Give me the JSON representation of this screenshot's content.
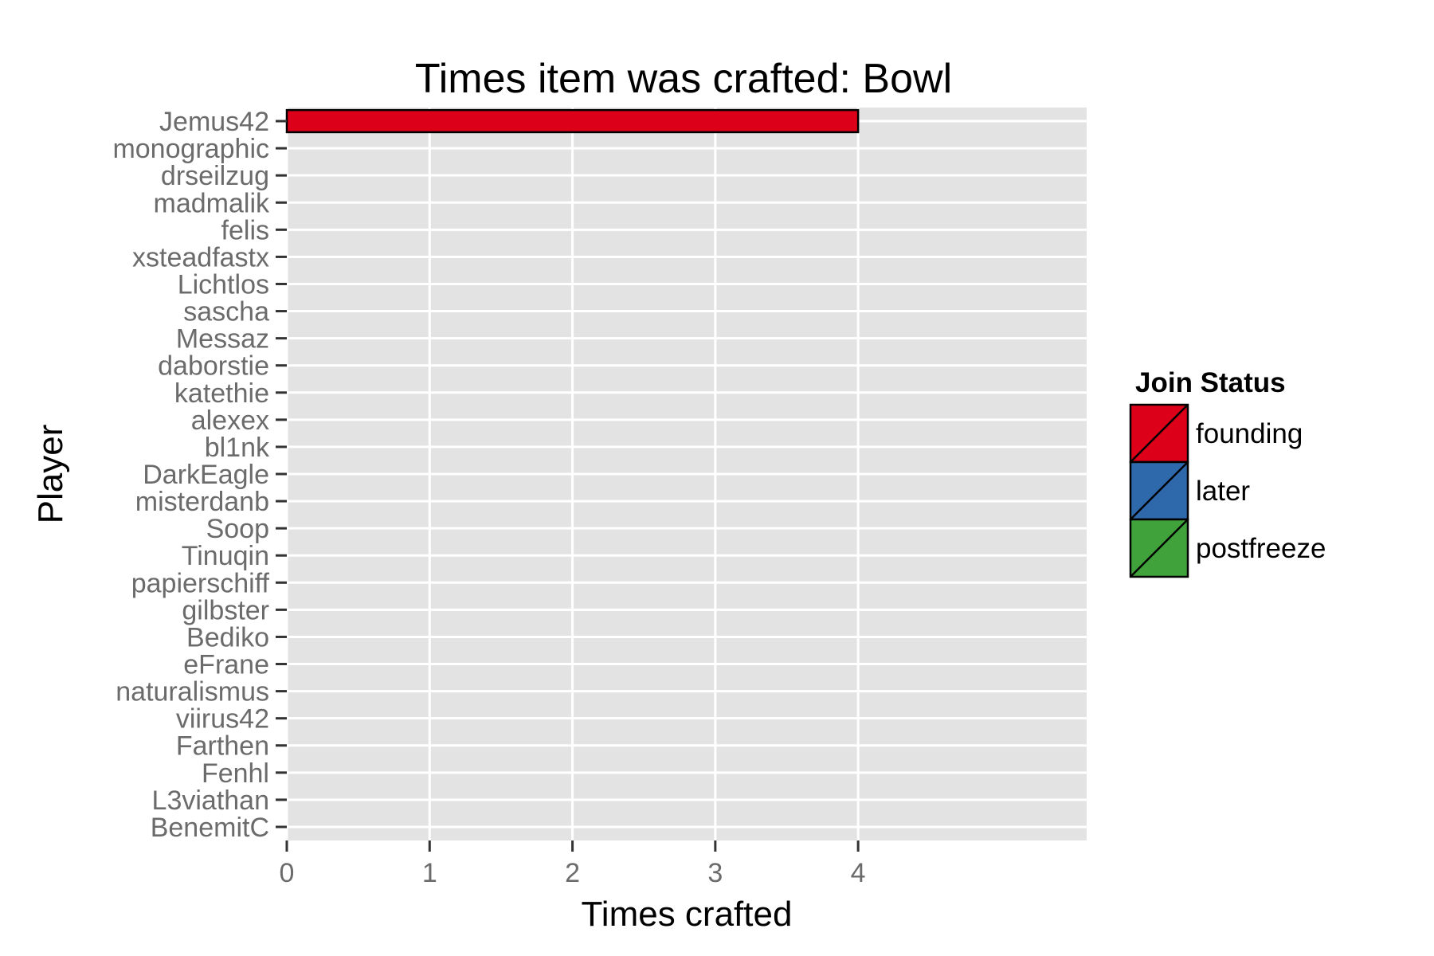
{
  "chart_data": {
    "type": "bar",
    "orientation": "horizontal",
    "title": "Times item was crafted: Bowl",
    "xlabel": "Times crafted",
    "ylabel": "Player",
    "categories": [
      "Jemus42",
      "monographic",
      "drseilzug",
      "madmalik",
      "felis",
      "xsteadfastx",
      "Lichtlos",
      "sascha",
      "Messaz",
      "daborstie",
      "katethie",
      "alexex",
      "bl1nk",
      "DarkEagle",
      "misterdanb",
      "Soop",
      "Tinuqin",
      "papierschiff",
      "gilbster",
      "Bediko",
      "eFrane",
      "naturalismus",
      "viirus42",
      "Farthen",
      "Fenhl",
      "L3viathan",
      "BenemitC"
    ],
    "values": [
      4,
      0,
      0,
      0,
      0,
      0,
      0,
      0,
      0,
      0,
      0,
      0,
      0,
      0,
      0,
      0,
      0,
      0,
      0,
      0,
      0,
      0,
      0,
      0,
      0,
      0,
      0
    ],
    "status": [
      "founding",
      "founding",
      "founding",
      "founding",
      "founding",
      "founding",
      "founding",
      "founding",
      "founding",
      "founding",
      "founding",
      "founding",
      "founding",
      "founding",
      "founding",
      "founding",
      "founding",
      "founding",
      "founding",
      "founding",
      "founding",
      "founding",
      "founding",
      "founding",
      "founding",
      "founding",
      "founding"
    ],
    "xlim": [
      0,
      5.6
    ],
    "xticks": [
      0,
      1,
      2,
      3,
      4
    ],
    "grid": true,
    "legend": {
      "title": "Join Status",
      "position": "right",
      "items": [
        {
          "label": "founding",
          "color": "#dc0018"
        },
        {
          "label": "later",
          "color": "#2e6aab"
        },
        {
          "label": "postfreeze",
          "color": "#3fa23a"
        }
      ]
    },
    "colors": {
      "panel": "#e3e3e3",
      "grid": "#ffffff",
      "axis_text": "#6b6b6b"
    }
  }
}
